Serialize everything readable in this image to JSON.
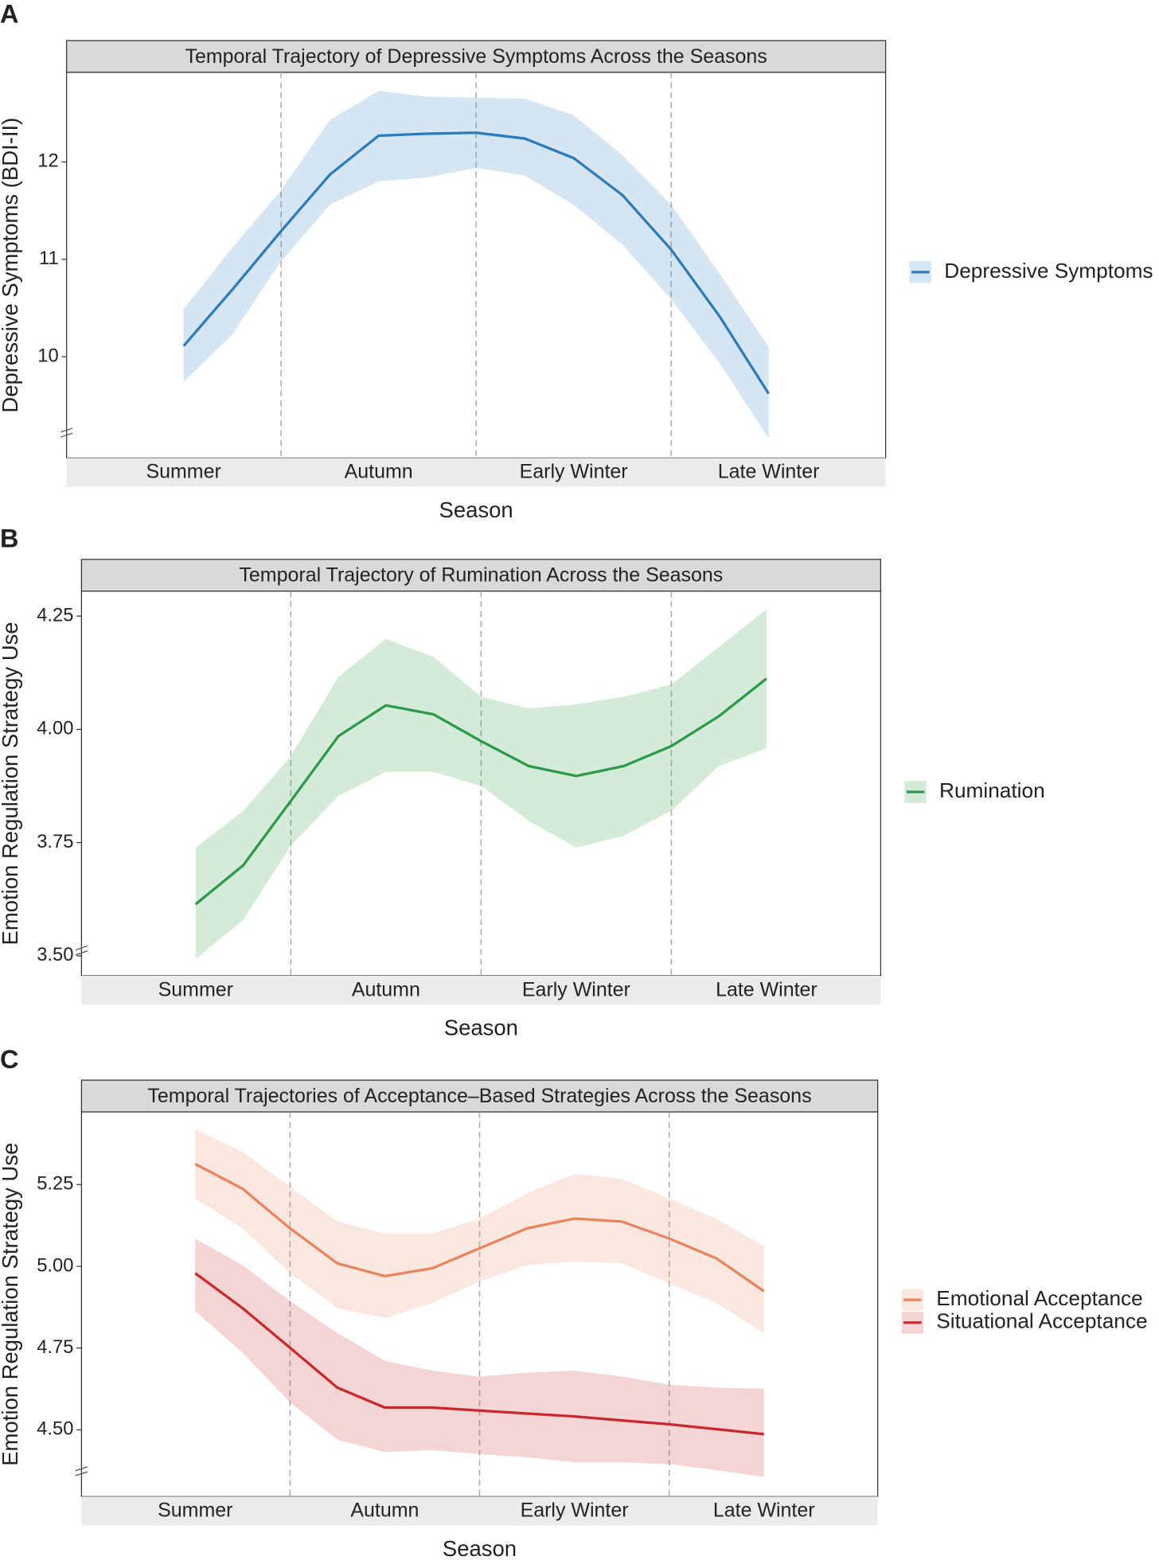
{
  "chart_data": [
    {
      "type": "line",
      "panel_label": "A",
      "title": "Temporal Trajectory of Depressive Symptoms Across the Seasons",
      "x_label": "Season",
      "y_label": "Depressive Symptoms (BDI-II)",
      "x": [
        1,
        1.25,
        1.5,
        1.75,
        2,
        2.25,
        2.5,
        2.75,
        3,
        3.25,
        3.5,
        3.75,
        4
      ],
      "xlim": [
        0.4,
        4.6
      ],
      "xticks": [
        {
          "value": 1,
          "label": "Summer"
        },
        {
          "value": 2,
          "label": "Autumn"
        },
        {
          "value": 3,
          "label": "Early Winter"
        },
        {
          "value": 4,
          "label": "Late Winter"
        }
      ],
      "ylim": [
        8.96,
        12.92
      ],
      "yticks": [
        10,
        11,
        12
      ],
      "legend": "right",
      "series": [
        {
          "name": "Depressive Symptoms",
          "color": "#2b7bba",
          "values": [
            10.11,
            10.69,
            11.29,
            11.87,
            12.27,
            12.29,
            12.3,
            12.24,
            12.04,
            11.66,
            11.1,
            10.41,
            9.62
          ],
          "lower": [
            9.74,
            10.23,
            10.98,
            11.56,
            11.8,
            11.84,
            11.94,
            11.86,
            11.56,
            11.15,
            10.59,
            9.93,
            9.16
          ],
          "upper": [
            10.49,
            11.12,
            11.71,
            12.43,
            12.73,
            12.67,
            12.66,
            12.65,
            12.48,
            12.07,
            11.56,
            10.85,
            10.1
          ]
        }
      ]
    },
    {
      "type": "line",
      "panel_label": "B",
      "title": "Temporal Trajectory of Rumination Across the Seasons",
      "x_label": "Season",
      "y_label": "Emotion Regulation Strategy Use",
      "x": [
        1,
        1.25,
        1.5,
        1.75,
        2,
        2.25,
        2.5,
        2.75,
        3,
        3.25,
        3.5,
        3.75,
        4
      ],
      "xlim": [
        0.4,
        4.6
      ],
      "xticks": [
        {
          "value": 1,
          "label": "Summer"
        },
        {
          "value": 2,
          "label": "Autumn"
        },
        {
          "value": 3,
          "label": "Early Winter"
        },
        {
          "value": 4,
          "label": "Late Winter"
        }
      ],
      "ylim": [
        3.456,
        4.305
      ],
      "yticks": [
        {
          "value": 3.5,
          "label": "3.50"
        },
        3.75,
        {
          "value": 4,
          "label": "4.00"
        },
        4.25
      ],
      "legend": "right",
      "series": [
        {
          "name": "Rumination",
          "color": "#2a9a48",
          "values": [
            3.614,
            3.7,
            3.842,
            3.985,
            4.053,
            4.033,
            3.974,
            3.919,
            3.897,
            3.919,
            3.963,
            4.029,
            4.112
          ],
          "lower": [
            3.493,
            3.579,
            3.743,
            3.853,
            3.906,
            3.906,
            3.875,
            3.798,
            3.739,
            3.765,
            3.82,
            3.919,
            3.958
          ],
          "upper": [
            3.739,
            3.82,
            3.941,
            4.116,
            4.2,
            4.16,
            4.072,
            4.046,
            4.055,
            4.072,
            4.099,
            4.182,
            4.265
          ]
        }
      ]
    },
    {
      "type": "line",
      "panel_label": "C",
      "title": "Temporal Trajectories of Acceptance–Based Strategies Across the Seasons",
      "x_label": "Season",
      "y_label": "Emotion Regulation Strategy Use",
      "x": [
        1,
        1.25,
        1.5,
        1.75,
        2,
        2.25,
        2.5,
        2.75,
        3,
        3.25,
        3.5,
        3.75,
        4
      ],
      "xlim": [
        0.4,
        4.6
      ],
      "xticks": [
        {
          "value": 1,
          "label": "Summer"
        },
        {
          "value": 2,
          "label": "Autumn"
        },
        {
          "value": 3,
          "label": "Early Winter"
        },
        {
          "value": 4,
          "label": "Late Winter"
        }
      ],
      "ylim": [
        4.296,
        5.472
      ],
      "yticks": [
        {
          "value": 4.5,
          "label": "4.50"
        },
        4.75,
        {
          "value": 5,
          "label": "5.00"
        },
        5.25
      ],
      "legend": "right",
      "series": [
        {
          "name": "Emotional Acceptance",
          "color": "#e8855e",
          "values": [
            5.313,
            5.237,
            5.116,
            5.009,
            4.97,
            4.994,
            5.055,
            5.116,
            5.146,
            5.137,
            5.085,
            5.024,
            4.924
          ],
          "lower": [
            5.207,
            5.116,
            4.979,
            4.872,
            4.842,
            4.888,
            4.954,
            5.003,
            5.015,
            5.009,
            4.948,
            4.888,
            4.796
          ],
          "upper": [
            5.419,
            5.35,
            5.243,
            5.137,
            5.1,
            5.1,
            5.146,
            5.222,
            5.283,
            5.267,
            5.207,
            5.146,
            5.061
          ]
        },
        {
          "name": "Situational Acceptance",
          "color": "#c9282a",
          "values": [
            4.979,
            4.872,
            4.751,
            4.629,
            4.568,
            4.568,
            4.559,
            4.55,
            4.541,
            4.529,
            4.517,
            4.502,
            4.487
          ],
          "lower": [
            4.863,
            4.736,
            4.584,
            4.47,
            4.432,
            4.438,
            4.426,
            4.416,
            4.401,
            4.401,
            4.395,
            4.377,
            4.356
          ],
          "upper": [
            5.085,
            5.003,
            4.894,
            4.796,
            4.711,
            4.681,
            4.663,
            4.675,
            4.681,
            4.663,
            4.638,
            4.629,
            4.626
          ]
        }
      ]
    }
  ]
}
